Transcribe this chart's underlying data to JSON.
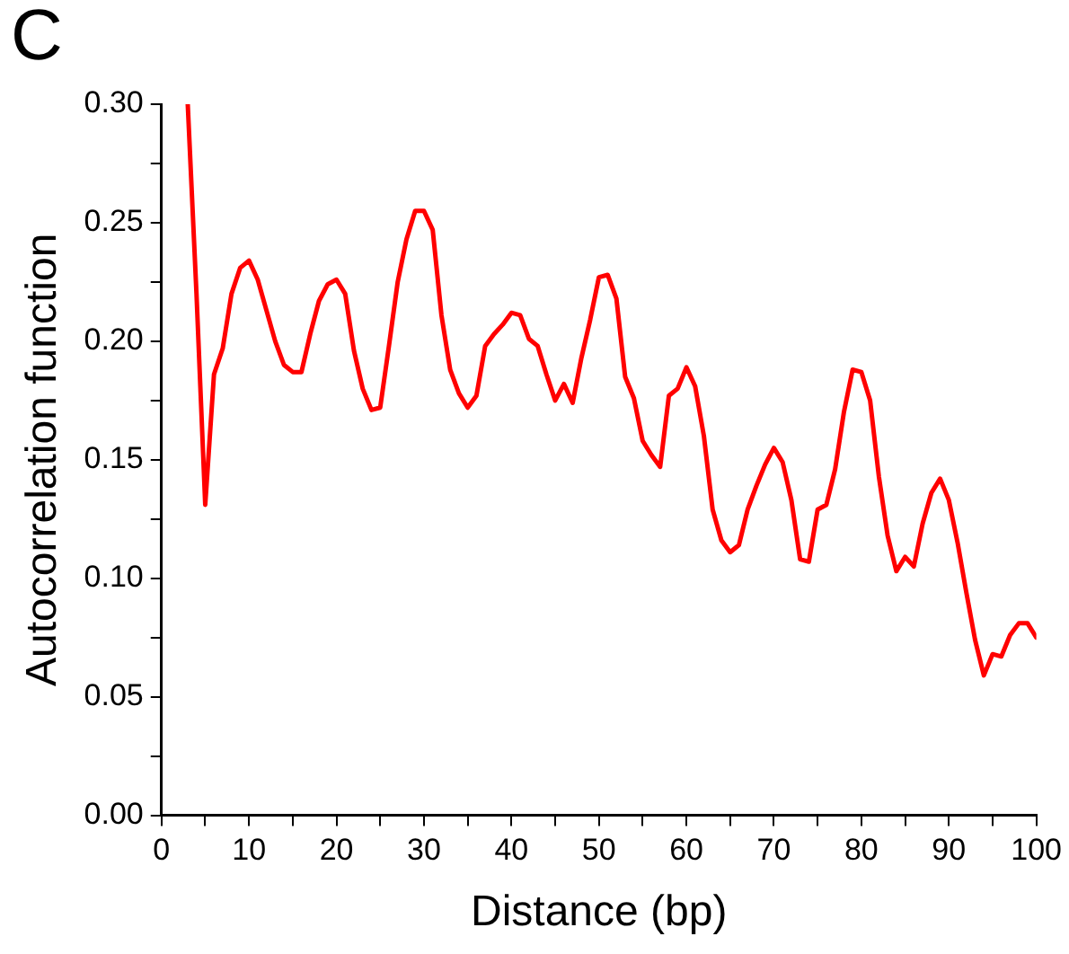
{
  "chart_data": {
    "type": "line",
    "title": "C",
    "xlabel": "Distance (bp)",
    "ylabel": "Autocorrelation function",
    "x": [
      3,
      4,
      5,
      6,
      7,
      8,
      9,
      10,
      11,
      12,
      13,
      14,
      15,
      16,
      17,
      18,
      19,
      20,
      21,
      22,
      23,
      24,
      25,
      26,
      27,
      28,
      29,
      30,
      31,
      32,
      33,
      34,
      35,
      36,
      37,
      38,
      39,
      40,
      41,
      42,
      43,
      44,
      45,
      46,
      47,
      48,
      49,
      50,
      51,
      52,
      53,
      54,
      55,
      56,
      57,
      58,
      59,
      60,
      61,
      62,
      63,
      64,
      65,
      66,
      67,
      68,
      69,
      70,
      71,
      72,
      73,
      74,
      75,
      76,
      77,
      78,
      79,
      80,
      81,
      82,
      83,
      84,
      85,
      86,
      87,
      88,
      89,
      90,
      91,
      92,
      93,
      94,
      95,
      96,
      97,
      98,
      99,
      100
    ],
    "series": [
      {
        "color": "#ff0000",
        "values": [
          0.3,
          0.22,
          0.131,
          0.186,
          0.197,
          0.22,
          0.231,
          0.234,
          0.226,
          0.213,
          0.2,
          0.19,
          0.187,
          0.187,
          0.203,
          0.217,
          0.224,
          0.226,
          0.22,
          0.196,
          0.18,
          0.171,
          0.172,
          0.198,
          0.225,
          0.243,
          0.255,
          0.255,
          0.247,
          0.211,
          0.188,
          0.178,
          0.172,
          0.177,
          0.198,
          0.203,
          0.207,
          0.212,
          0.211,
          0.201,
          0.198,
          0.186,
          0.175,
          0.182,
          0.174,
          0.193,
          0.209,
          0.227,
          0.228,
          0.218,
          0.185,
          0.176,
          0.158,
          0.152,
          0.147,
          0.177,
          0.18,
          0.189,
          0.181,
          0.16,
          0.129,
          0.116,
          0.111,
          0.114,
          0.129,
          0.139,
          0.148,
          0.155,
          0.149,
          0.133,
          0.108,
          0.107,
          0.129,
          0.131,
          0.146,
          0.17,
          0.188,
          0.187,
          0.175,
          0.143,
          0.118,
          0.103,
          0.109,
          0.105,
          0.123,
          0.136,
          0.142,
          0.133,
          0.115,
          0.094,
          0.074,
          0.059,
          0.068,
          0.067,
          0.076,
          0.081,
          0.081,
          0.075
        ]
      }
    ],
    "xlim": [
      0,
      100
    ],
    "xticks": [
      0,
      {
        "value": 5,
        "label": null
      },
      10,
      {
        "value": 15,
        "label": null
      },
      20,
      {
        "value": 25,
        "label": null
      },
      30,
      {
        "value": 35,
        "label": null
      },
      40,
      {
        "value": 45,
        "label": null
      },
      50,
      {
        "value": 55,
        "label": null
      },
      60,
      {
        "value": 65,
        "label": null
      },
      70,
      {
        "value": 75,
        "label": null
      },
      80,
      {
        "value": 85,
        "label": null
      },
      90,
      {
        "value": 95,
        "label": null
      },
      100
    ],
    "ylim": [
      0,
      0.3
    ],
    "yticks": [
      {
        "value": 0,
        "label": "0.00"
      },
      {
        "value": 0.025,
        "label": null
      },
      {
        "value": 0.05,
        "label": "0.05"
      },
      {
        "value": 0.075,
        "label": null
      },
      {
        "value": 0.1,
        "label": "0.10"
      },
      {
        "value": 0.125,
        "label": null
      },
      {
        "value": 0.15,
        "label": "0.15"
      },
      {
        "value": 0.175,
        "label": null
      },
      {
        "value": 0.2,
        "label": "0.20"
      },
      {
        "value": 0.225,
        "label": null
      },
      {
        "value": 0.25,
        "label": "0.25"
      },
      {
        "value": 0.275,
        "label": null
      },
      {
        "value": 0.3,
        "label": "0.30"
      }
    ],
    "grid": false,
    "legend": false,
    "marker": "none",
    "line_style": "solid"
  }
}
